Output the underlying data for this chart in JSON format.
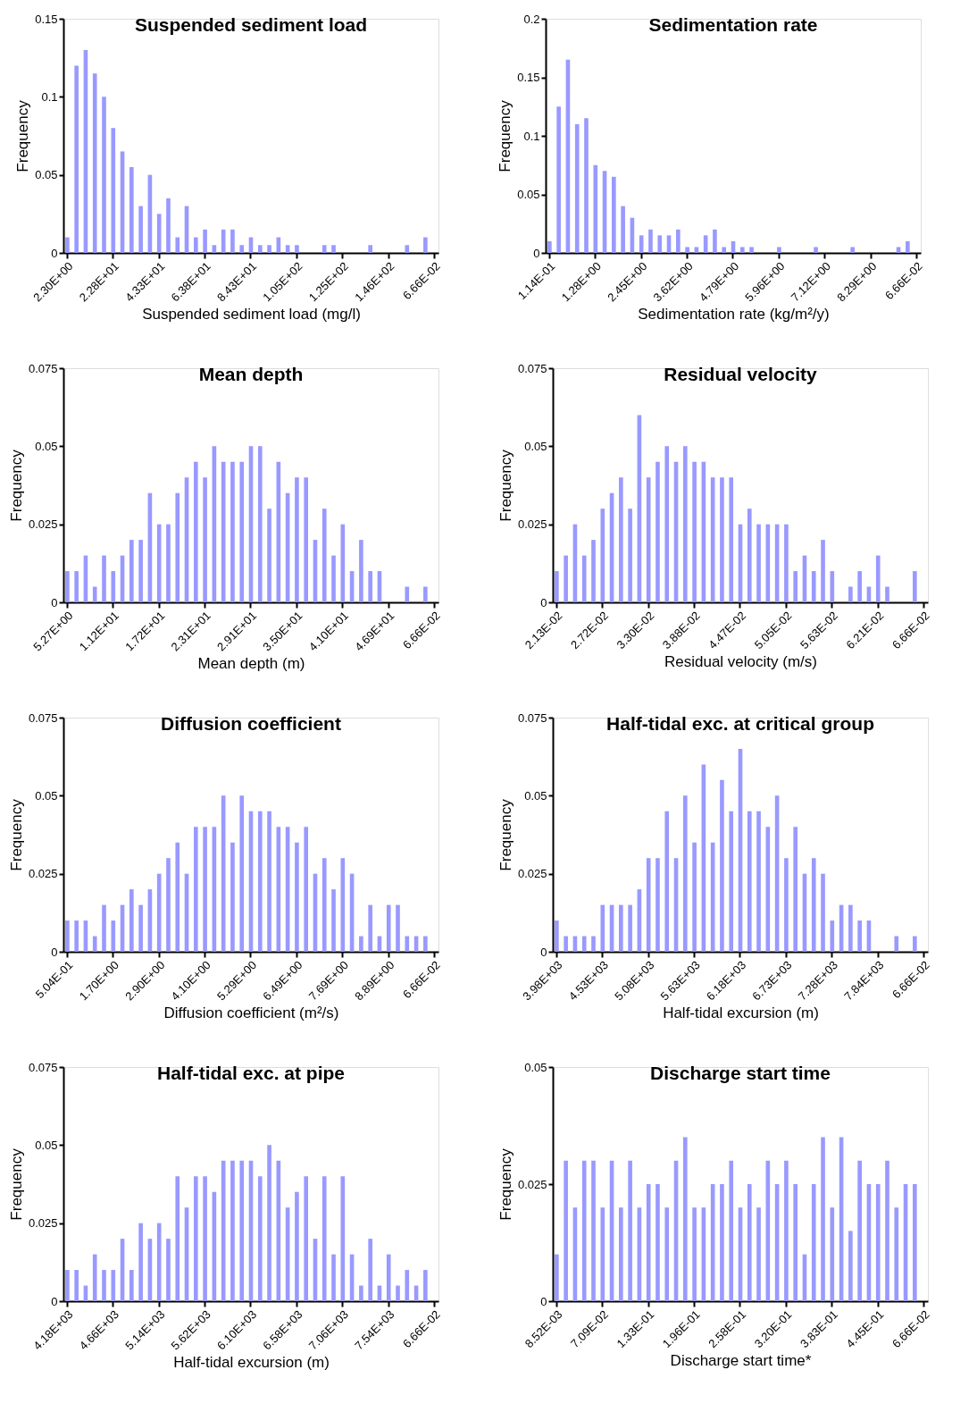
{
  "chart_data": [
    {
      "type": "bar",
      "title": "Suspended sediment load",
      "xlabel": "Suspended sediment load (mg/l)",
      "ylabel": "Frequency",
      "color": "#9999ff",
      "ylim": [
        0,
        0.15
      ],
      "yticks": [
        0,
        0.05,
        0.1,
        0.15
      ],
      "categories": [
        "2.30E+00",
        null,
        null,
        null,
        null,
        "2.28E+01",
        null,
        null,
        null,
        null,
        "4.33E+01",
        null,
        null,
        null,
        null,
        "6.38E+01",
        null,
        null,
        null,
        null,
        "8.43E+01",
        null,
        null,
        null,
        null,
        "1.05E+02",
        null,
        null,
        null,
        null,
        "1.25E+02",
        null,
        null,
        null,
        null,
        "1.46E+02",
        null,
        null,
        null,
        null,
        "6.66E-02"
      ],
      "values": [
        0.01,
        0.12,
        0.13,
        0.115,
        0.1,
        0.08,
        0.065,
        0.055,
        0.03,
        0.05,
        0.025,
        0.035,
        0.01,
        0.03,
        0.01,
        0.015,
        0.005,
        0.015,
        0.015,
        0.005,
        0.01,
        0.005,
        0.005,
        0.01,
        0.005,
        0.005,
        0,
        0,
        0.005,
        0.005,
        0,
        0,
        0,
        0.005,
        0,
        0,
        0,
        0.005,
        0,
        0.01,
        null
      ]
    },
    {
      "type": "bar",
      "title": "Sedimentation rate",
      "xlabel": "Sedimentation rate (kg/m²/y)",
      "ylabel": "Frequency",
      "color": "#9999ff",
      "ylim": [
        0,
        0.2
      ],
      "yticks": [
        0,
        0.05,
        0.1,
        0.15,
        0.2
      ],
      "categories": [
        "1.14E-01",
        null,
        null,
        null,
        null,
        "1.28E+00",
        null,
        null,
        null,
        null,
        "2.45E+00",
        null,
        null,
        null,
        null,
        "3.62E+00",
        null,
        null,
        null,
        null,
        "4.79E+00",
        null,
        null,
        null,
        null,
        "5.96E+00",
        null,
        null,
        null,
        null,
        "7.12E+00",
        null,
        null,
        null,
        null,
        "8.29E+00",
        null,
        null,
        null,
        null,
        "6.66E-02"
      ],
      "values": [
        0.01,
        0.125,
        0.165,
        0.11,
        0.115,
        0.075,
        0.07,
        0.065,
        0.04,
        0.03,
        0.015,
        0.02,
        0.015,
        0.015,
        0.02,
        0.005,
        0.005,
        0.015,
        0.02,
        0.005,
        0.01,
        0.005,
        0.005,
        0,
        0,
        0.005,
        0,
        0,
        0,
        0.005,
        0,
        0,
        0,
        0.005,
        0,
        0,
        0,
        0,
        0.005,
        0.01,
        null
      ]
    },
    {
      "type": "bar",
      "title": "Mean depth",
      "xlabel": "Mean depth (m)",
      "ylabel": "Frequency",
      "color": "#9999ff",
      "ylim": [
        0,
        0.075
      ],
      "yticks": [
        0,
        0.025,
        0.05,
        0.075
      ],
      "categories": [
        "5.27E+00",
        null,
        null,
        null,
        null,
        "1.12E+01",
        null,
        null,
        null,
        null,
        "1.72E+01",
        null,
        null,
        null,
        null,
        "2.31E+01",
        null,
        null,
        null,
        null,
        "2.91E+01",
        null,
        null,
        null,
        null,
        "3.50E+01",
        null,
        null,
        null,
        null,
        "4.10E+01",
        null,
        null,
        null,
        null,
        "4.69E+01",
        null,
        null,
        null,
        null,
        "6.66E-02"
      ],
      "values": [
        0.01,
        0.01,
        0.015,
        0.005,
        0.015,
        0.01,
        0.015,
        0.02,
        0.02,
        0.035,
        0.025,
        0.025,
        0.035,
        0.04,
        0.045,
        0.04,
        0.05,
        0.045,
        0.045,
        0.045,
        0.05,
        0.05,
        0.03,
        0.045,
        0.035,
        0.04,
        0.04,
        0.02,
        0.03,
        0.015,
        0.025,
        0.01,
        0.02,
        0.01,
        0.01,
        0,
        0,
        0.005,
        0,
        0.005,
        null
      ]
    },
    {
      "type": "bar",
      "title": "Residual velocity",
      "xlabel": "Residual velocity (m/s)",
      "ylabel": "Frequency",
      "color": "#9999ff",
      "ylim": [
        0,
        0.075
      ],
      "yticks": [
        0,
        0.025,
        0.05,
        0.075
      ],
      "categories": [
        "2.13E-02",
        null,
        null,
        null,
        null,
        "2.72E-02",
        null,
        null,
        null,
        null,
        "3.30E-02",
        null,
        null,
        null,
        null,
        "3.88E-02",
        null,
        null,
        null,
        null,
        "4.47E-02",
        null,
        null,
        null,
        null,
        "5.05E-02",
        null,
        null,
        null,
        null,
        "5.63E-02",
        null,
        null,
        null,
        null,
        "6.21E-02",
        null,
        null,
        null,
        null,
        "6.66E-02"
      ],
      "values": [
        0.01,
        0.015,
        0.025,
        0.015,
        0.02,
        0.03,
        0.035,
        0.04,
        0.03,
        0.06,
        0.04,
        0.045,
        0.05,
        0.045,
        0.05,
        0.045,
        0.045,
        0.04,
        0.04,
        0.04,
        0.025,
        0.03,
        0.025,
        0.025,
        0.025,
        0.025,
        0.01,
        0.015,
        0.01,
        0.02,
        0.01,
        0,
        0.005,
        0.01,
        0.005,
        0.015,
        0.005,
        0,
        0,
        0.01,
        null
      ]
    },
    {
      "type": "bar",
      "title": "Diffusion coefficient",
      "xlabel": "Diffusion coefficient (m²/s)",
      "ylabel": "Frequency",
      "color": "#9999ff",
      "ylim": [
        0,
        0.075
      ],
      "yticks": [
        0,
        0.025,
        0.05,
        0.075
      ],
      "categories": [
        "5.04E-01",
        null,
        null,
        null,
        null,
        "1.70E+00",
        null,
        null,
        null,
        null,
        "2.90E+00",
        null,
        null,
        null,
        null,
        "4.10E+00",
        null,
        null,
        null,
        null,
        "5.29E+00",
        null,
        null,
        null,
        null,
        "6.49E+00",
        null,
        null,
        null,
        null,
        "7.69E+00",
        null,
        null,
        null,
        null,
        "8.89E+00",
        null,
        null,
        null,
        null,
        "6.66E-02"
      ],
      "values": [
        0.01,
        0.01,
        0.01,
        0.005,
        0.015,
        0.01,
        0.015,
        0.02,
        0.015,
        0.02,
        0.025,
        0.03,
        0.035,
        0.025,
        0.04,
        0.04,
        0.04,
        0.05,
        0.035,
        0.05,
        0.045,
        0.045,
        0.045,
        0.04,
        0.04,
        0.035,
        0.04,
        0.025,
        0.03,
        0.02,
        0.03,
        0.025,
        0.005,
        0.015,
        0.005,
        0.015,
        0.015,
        0.005,
        0.005,
        0.005,
        null
      ]
    },
    {
      "type": "bar",
      "title": "Half-tidal exc. at critical group",
      "xlabel": "Half-tidal excursion (m)",
      "ylabel": "Frequency",
      "color": "#9999ff",
      "ylim": [
        0,
        0.075
      ],
      "yticks": [
        0,
        0.025,
        0.05,
        0.075
      ],
      "categories": [
        "3.98E+03",
        null,
        null,
        null,
        null,
        "4.53E+03",
        null,
        null,
        null,
        null,
        "5.08E+03",
        null,
        null,
        null,
        null,
        "5.63E+03",
        null,
        null,
        null,
        null,
        "6.18E+03",
        null,
        null,
        null,
        null,
        "6.73E+03",
        null,
        null,
        null,
        null,
        "7.28E+03",
        null,
        null,
        null,
        null,
        "7.84E+03",
        null,
        null,
        null,
        null,
        "6.66E-02"
      ],
      "values": [
        0.01,
        0.005,
        0.005,
        0.005,
        0.005,
        0.015,
        0.015,
        0.015,
        0.015,
        0.02,
        0.03,
        0.03,
        0.045,
        0.03,
        0.05,
        0.035,
        0.06,
        0.035,
        0.055,
        0.045,
        0.065,
        0.045,
        0.045,
        0.04,
        0.05,
        0.03,
        0.04,
        0.025,
        0.03,
        0.025,
        0.01,
        0.015,
        0.015,
        0.01,
        0.01,
        0,
        0,
        0.005,
        0,
        0.005,
        null
      ]
    },
    {
      "type": "bar",
      "title": "Half-tidal exc. at pipe",
      "xlabel": "Half-tidal excursion (m)",
      "ylabel": "Frequency",
      "color": "#9999ff",
      "ylim": [
        0,
        0.075
      ],
      "yticks": [
        0,
        0.025,
        0.05,
        0.075
      ],
      "categories": [
        "4.18E+03",
        null,
        null,
        null,
        null,
        "4.66E+03",
        null,
        null,
        null,
        null,
        "5.14E+03",
        null,
        null,
        null,
        null,
        "5.62E+03",
        null,
        null,
        null,
        null,
        "6.10E+03",
        null,
        null,
        null,
        null,
        "6.58E+03",
        null,
        null,
        null,
        null,
        "7.06E+03",
        null,
        null,
        null,
        null,
        "7.54E+03",
        null,
        null,
        null,
        null,
        "6.66E-02"
      ],
      "values": [
        0.01,
        0.01,
        0.005,
        0.015,
        0.01,
        0.01,
        0.02,
        0.01,
        0.025,
        0.02,
        0.025,
        0.02,
        0.04,
        0.03,
        0.04,
        0.04,
        0.035,
        0.045,
        0.045,
        0.045,
        0.045,
        0.04,
        0.05,
        0.045,
        0.03,
        0.035,
        0.04,
        0.02,
        0.04,
        0.015,
        0.04,
        0.015,
        0.005,
        0.02,
        0.005,
        0.015,
        0.005,
        0.01,
        0.005,
        0.01,
        null
      ]
    },
    {
      "type": "bar",
      "title": "Discharge start time",
      "xlabel": "Discharge start time*",
      "ylabel": "Frequency",
      "color": "#9999ff",
      "ylim": [
        0,
        0.05
      ],
      "yticks": [
        0,
        0.025,
        0.05
      ],
      "categories": [
        "8.52E-03",
        null,
        null,
        null,
        null,
        "7.09E-02",
        null,
        null,
        null,
        null,
        "1.33E-01",
        null,
        null,
        null,
        null,
        "1.96E-01",
        null,
        null,
        null,
        null,
        "2.58E-01",
        null,
        null,
        null,
        null,
        "3.20E-01",
        null,
        null,
        null,
        null,
        "3.83E-01",
        null,
        null,
        null,
        null,
        "4.45E-01",
        null,
        null,
        null,
        null,
        "6.66E-02"
      ],
      "values": [
        0.01,
        0.03,
        0.02,
        0.03,
        0.03,
        0.02,
        0.03,
        0.02,
        0.03,
        0.02,
        0.025,
        0.025,
        0.02,
        0.03,
        0.035,
        0.02,
        0.02,
        0.025,
        0.025,
        0.03,
        0.02,
        0.025,
        0.02,
        0.03,
        0.025,
        0.03,
        0.025,
        0.01,
        0.025,
        0.035,
        0.02,
        0.035,
        0.015,
        0.03,
        0.025,
        0.025,
        0.03,
        0.02,
        0.025,
        0.025,
        null
      ]
    }
  ]
}
